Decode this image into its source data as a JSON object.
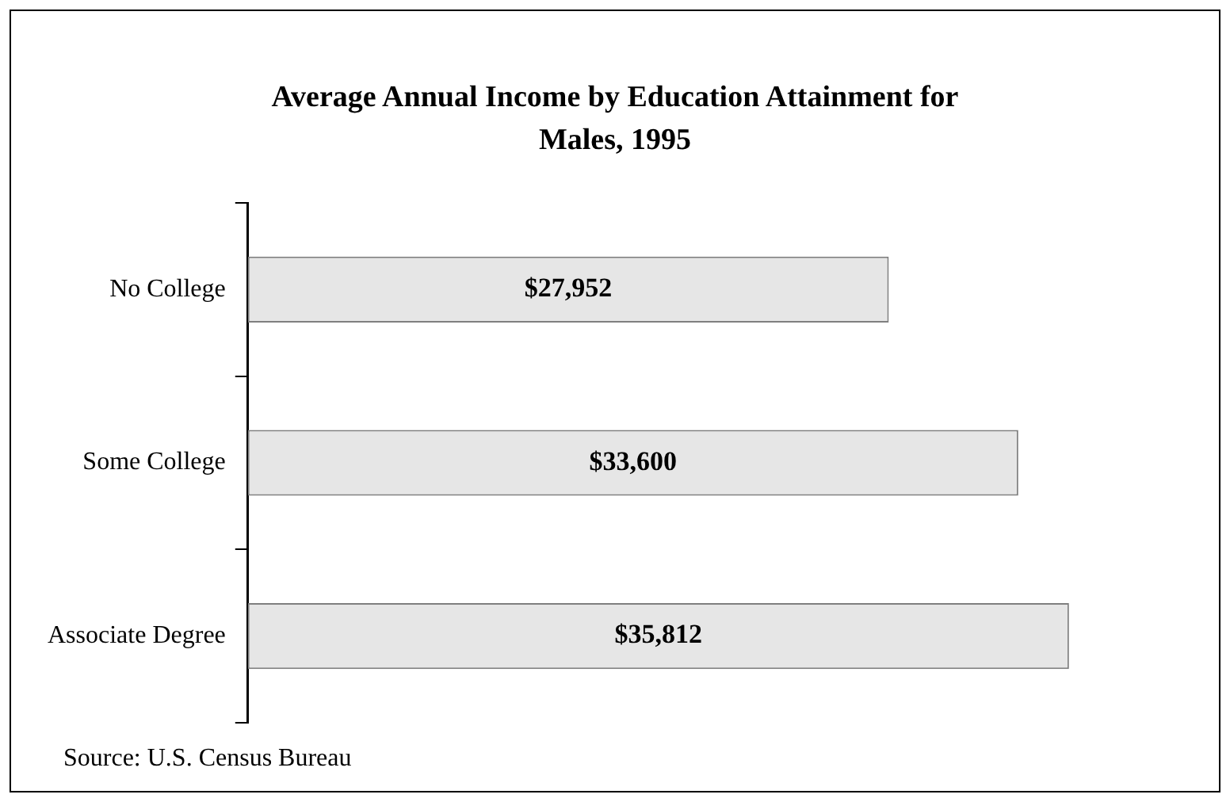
{
  "chart_data": {
    "type": "bar",
    "orientation": "horizontal",
    "title": "Average Annual Income by Education Attainment for Males, 1995",
    "categories": [
      "No College",
      "Some College",
      "Associate Degree"
    ],
    "values": [
      27952,
      33600,
      35812
    ],
    "value_labels": [
      "$27,952",
      "$33,600",
      "$35,812"
    ],
    "color": "#e6e6e6",
    "tick_labels": "y",
    "legend": false,
    "annotations": [
      "Source:  U.S. Census Bureau"
    ]
  }
}
